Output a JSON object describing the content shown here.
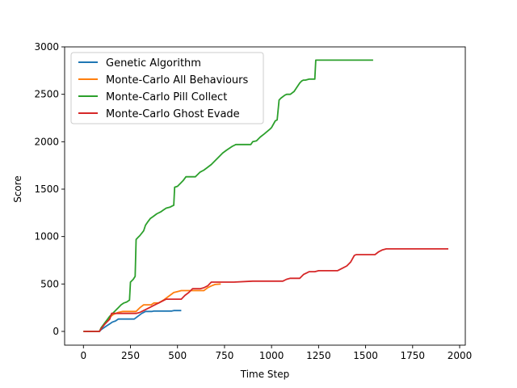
{
  "chart_data": {
    "type": "line",
    "title": "",
    "xlabel": "Time Step",
    "ylabel": "Score",
    "xlim": [
      -100,
      2030
    ],
    "ylim": [
      -145,
      3000
    ],
    "xticks": [
      0,
      250,
      500,
      750,
      1000,
      1250,
      1500,
      1750,
      2000
    ],
    "yticks": [
      0,
      500,
      1000,
      1500,
      2000,
      2500,
      3000
    ],
    "grid": false,
    "legend": "top-left",
    "series": [
      {
        "name": "Genetic Algorithm",
        "color": "#1f77b4",
        "x": [
          0,
          85,
          95,
          110,
          125,
          140,
          155,
          170,
          185,
          270,
          290,
          310,
          330,
          365,
          375,
          470,
          480,
          520
        ],
        "y": [
          0,
          0,
          20,
          40,
          60,
          80,
          100,
          110,
          130,
          130,
          160,
          190,
          210,
          210,
          215,
          215,
          220,
          220
        ]
      },
      {
        "name": "Monte-Carlo All Behaviours",
        "color": "#ff7f0e",
        "x": [
          0,
          85,
          95,
          115,
          140,
          160,
          185,
          210,
          230,
          280,
          300,
          320,
          360,
          375,
          400,
          425,
          440,
          460,
          480,
          500,
          520,
          640,
          660,
          680,
          700,
          730
        ],
        "y": [
          0,
          0,
          40,
          90,
          150,
          180,
          200,
          210,
          210,
          210,
          250,
          280,
          280,
          300,
          300,
          330,
          350,
          380,
          410,
          420,
          430,
          430,
          460,
          480,
          495,
          500
        ]
      },
      {
        "name": "Monte-Carlo Pill Collect",
        "color": "#2ca02c",
        "x": [
          0,
          85,
          95,
          110,
          125,
          140,
          155,
          170,
          185,
          200,
          215,
          230,
          245,
          250,
          265,
          275,
          280,
          290,
          300,
          320,
          330,
          340,
          355,
          370,
          390,
          410,
          425,
          440,
          460,
          470,
          480,
          485,
          500,
          515,
          530,
          545,
          565,
          595,
          605,
          620,
          640,
          660,
          680,
          700,
          720,
          740,
          760,
          790,
          800,
          810,
          830,
          890,
          900,
          920,
          940,
          960,
          990,
          1000,
          1020,
          1030,
          1040,
          1050,
          1070,
          1080,
          1100,
          1120,
          1130,
          1150,
          1160,
          1170,
          1180,
          1200,
          1230,
          1235,
          1250,
          1400,
          1540
        ],
        "y": [
          0,
          0,
          40,
          80,
          120,
          160,
          190,
          220,
          250,
          280,
          300,
          310,
          330,
          520,
          550,
          580,
          970,
          990,
          1010,
          1060,
          1120,
          1150,
          1190,
          1210,
          1240,
          1260,
          1280,
          1300,
          1310,
          1320,
          1330,
          1520,
          1530,
          1560,
          1590,
          1630,
          1630,
          1630,
          1650,
          1680,
          1700,
          1730,
          1760,
          1800,
          1840,
          1880,
          1910,
          1950,
          1960,
          1970,
          1970,
          1970,
          2000,
          2010,
          2050,
          2080,
          2130,
          2150,
          2220,
          2230,
          2440,
          2460,
          2490,
          2500,
          2500,
          2530,
          2560,
          2620,
          2640,
          2650,
          2650,
          2660,
          2660,
          2860,
          2860,
          2860,
          2860
        ]
      },
      {
        "name": "Monte-Carlo Ghost Evade",
        "color": "#d62728",
        "x": [
          0,
          85,
          95,
          115,
          140,
          150,
          180,
          280,
          300,
          320,
          350,
          380,
          400,
          420,
          440,
          460,
          520,
          540,
          560,
          580,
          620,
          640,
          660,
          680,
          720,
          760,
          800,
          900,
          1000,
          1060,
          1080,
          1100,
          1150,
          1170,
          1200,
          1230,
          1250,
          1350,
          1380,
          1400,
          1420,
          1440,
          1450,
          1550,
          1570,
          1590,
          1610,
          1700,
          1800,
          1940
        ],
        "y": [
          0,
          0,
          30,
          80,
          130,
          190,
          190,
          190,
          200,
          220,
          250,
          280,
          300,
          320,
          340,
          340,
          340,
          380,
          410,
          450,
          450,
          460,
          480,
          520,
          520,
          520,
          520,
          530,
          530,
          530,
          550,
          560,
          560,
          600,
          630,
          630,
          640,
          640,
          670,
          690,
          730,
          800,
          810,
          810,
          840,
          860,
          870,
          870,
          870,
          870
        ]
      }
    ]
  }
}
